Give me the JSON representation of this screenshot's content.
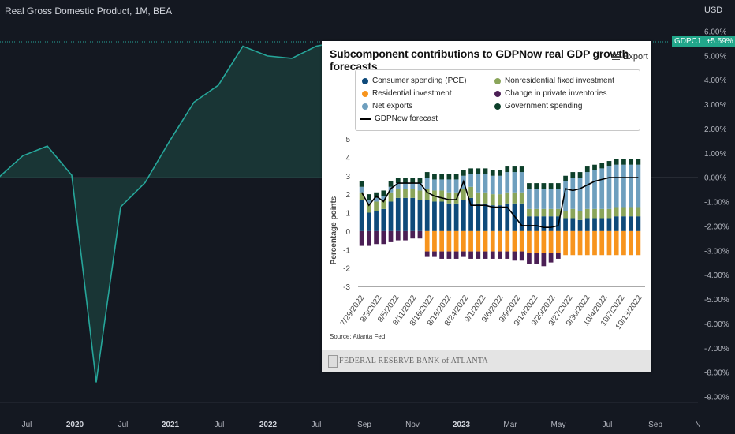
{
  "main_chart": {
    "title": "Real Gross Domestic Product, 1M, BEA",
    "currency": "USD",
    "symbol": "GDPC1",
    "last_value_label": "+5.59%",
    "line_color": "#26a69a",
    "y_ticks": [
      "6.00%",
      "5.00%",
      "4.00%",
      "3.00%",
      "2.00%",
      "1.00%",
      "0.00%",
      "-1.00%",
      "-2.00%",
      "-3.00%",
      "-4.00%",
      "-5.00%",
      "-6.00%",
      "-7.00%",
      "-8.00%",
      "-9.00%"
    ],
    "x_ticks": [
      {
        "label": "Jul",
        "bold": false
      },
      {
        "label": "2020",
        "bold": true
      },
      {
        "label": "Jul",
        "bold": false
      },
      {
        "label": "2021",
        "bold": true
      },
      {
        "label": "Jul",
        "bold": false
      },
      {
        "label": "2022",
        "bold": true
      },
      {
        "label": "Jul",
        "bold": false
      },
      {
        "label": "Sep",
        "bold": false
      },
      {
        "label": "Nov",
        "bold": false
      },
      {
        "label": "2023",
        "bold": true
      },
      {
        "label": "Mar",
        "bold": false
      },
      {
        "label": "May",
        "bold": false
      },
      {
        "label": "Jul",
        "bold": false
      },
      {
        "label": "Sep",
        "bold": false
      },
      {
        "label": "N",
        "bold": false
      }
    ],
    "chart_data": {
      "type": "area",
      "x": [
        "2019 Q1",
        "2019 Q2",
        "2019 Q3",
        "2019 Q4",
        "2020 Q1",
        "2020 Q2",
        "2020 Q3",
        "2020 Q4",
        "2021 Q1",
        "2021 Q2",
        "2021 Q3",
        "2021 Q4",
        "2022 Q1",
        "2022 Q2",
        "2022 Q3"
      ],
      "values": [
        0.0,
        0.9,
        1.3,
        0.1,
        -8.4,
        -1.2,
        -0.2,
        1.5,
        3.1,
        3.8,
        5.4,
        5.0,
        4.9,
        5.4,
        5.59
      ],
      "ylim": [
        -9.3,
        6.3
      ]
    }
  },
  "overlay": {
    "title": "Subcomponent contributions to GDPNow real GDP growth forecasts",
    "export_label": "Export",
    "y_axis_label": "Percentage points",
    "source": "Source: Atlanta Fed",
    "footer": "FEDERAL RESERVE BANK of ATLANTA",
    "legend": [
      {
        "label": "Consumer spending (PCE)",
        "color": "#0e4a7a"
      },
      {
        "label": "Nonresidential fixed investment",
        "color": "#8aa55a"
      },
      {
        "label": "Residential investment",
        "color": "#f7941d"
      },
      {
        "label": "Change in private inventories",
        "color": "#4b1f55"
      },
      {
        "label": "Net exports",
        "color": "#6e9fbe"
      },
      {
        "label": "Government spending",
        "color": "#0d3f2a"
      },
      {
        "label": "GDPNow forecast",
        "color": "#000000"
      }
    ],
    "y_ticks": [
      "5",
      "4",
      "3",
      "2",
      "1",
      "0",
      "-1",
      "-2",
      "-3"
    ],
    "x_ticks": [
      "7/29/2022",
      "8/3/2022",
      "8/5/2022",
      "8/11/2022",
      "8/16/2022",
      "8/18/2022",
      "8/24/2022",
      "9/1/2022",
      "9/6/2022",
      "9/9/2022",
      "9/14/2022",
      "9/20/2022",
      "9/27/2022",
      "9/30/2022",
      "10/4/2022",
      "10/7/2022",
      "10/13/2022"
    ],
    "chart_data": {
      "type": "bar",
      "stacked": true,
      "ylim": [
        -3,
        5
      ],
      "series": [
        {
          "name": "Consumer spending (PCE)",
          "values": [
            1.7,
            1.0,
            1.1,
            1.2,
            1.6,
            1.8,
            1.8,
            1.8,
            1.7,
            1.7,
            1.6,
            1.6,
            1.5,
            1.5,
            1.7,
            1.8,
            1.5,
            1.5,
            1.4,
            1.4,
            1.5,
            1.5,
            1.5,
            0.8,
            0.8,
            0.8,
            0.8,
            0.8,
            0.7,
            0.7,
            0.6,
            0.7,
            0.7,
            0.7,
            0.7,
            0.8,
            0.8,
            0.8,
            0.8
          ]
        },
        {
          "name": "Nonresidential fixed investment",
          "values": [
            0.4,
            0.5,
            0.5,
            0.5,
            0.5,
            0.5,
            0.5,
            0.5,
            0.5,
            0.6,
            0.6,
            0.6,
            0.6,
            0.6,
            0.6,
            0.6,
            0.6,
            0.6,
            0.6,
            0.6,
            0.6,
            0.6,
            0.6,
            0.4,
            0.4,
            0.4,
            0.4,
            0.4,
            0.4,
            0.5,
            0.5,
            0.5,
            0.5,
            0.5,
            0.5,
            0.5,
            0.5,
            0.5,
            0.5
          ]
        },
        {
          "name": "Residential investment",
          "values": [
            0,
            0,
            0,
            0,
            0,
            0,
            0,
            0,
            0,
            -1.1,
            -1.1,
            -1.1,
            -1.1,
            -1.1,
            -1.1,
            -1.1,
            -1.1,
            -1.1,
            -1.1,
            -1.1,
            -1.1,
            -1.1,
            -1.1,
            -1.2,
            -1.2,
            -1.2,
            -1.2,
            -1.2,
            -1.3,
            -1.3,
            -1.3,
            -1.3,
            -1.3,
            -1.3,
            -1.3,
            -1.3,
            -1.3,
            -1.3,
            -1.3
          ]
        },
        {
          "name": "Change in private inventories",
          "values": [
            -0.8,
            -0.8,
            -0.7,
            -0.7,
            -0.6,
            -0.5,
            -0.5,
            -0.4,
            -0.4,
            -0.3,
            -0.3,
            -0.4,
            -0.4,
            -0.4,
            -0.3,
            -0.4,
            -0.4,
            -0.4,
            -0.4,
            -0.4,
            -0.4,
            -0.5,
            -0.5,
            -0.6,
            -0.6,
            -0.7,
            -0.5,
            -0.3,
            0,
            0,
            0,
            0,
            0,
            0,
            0,
            0,
            0,
            0,
            0
          ]
        },
        {
          "name": "Net exports",
          "values": [
            0.3,
            0.2,
            0.2,
            0.2,
            0.3,
            0.3,
            0.3,
            0.3,
            0.4,
            0.6,
            0.6,
            0.6,
            0.7,
            0.7,
            0.7,
            0.7,
            1.0,
            1.0,
            1.0,
            1.0,
            1.1,
            1.1,
            1.1,
            1.1,
            1.1,
            1.1,
            1.1,
            1.1,
            1.6,
            1.7,
            1.8,
            2.0,
            2.1,
            2.2,
            2.3,
            2.3,
            2.3,
            2.3,
            2.3
          ]
        },
        {
          "name": "Government spending",
          "values": [
            0.3,
            0.3,
            0.3,
            0.3,
            0.3,
            0.3,
            0.3,
            0.3,
            0.3,
            0.3,
            0.3,
            0.3,
            0.3,
            0.3,
            0.3,
            0.3,
            0.3,
            0.3,
            0.3,
            0.3,
            0.3,
            0.3,
            0.3,
            0.3,
            0.3,
            0.3,
            0.3,
            0.3,
            0.3,
            0.3,
            0.3,
            0.3,
            0.3,
            0.3,
            0.3,
            0.3,
            0.3,
            0.3,
            0.3
          ]
        }
      ],
      "gdpnow": [
        2.1,
        1.4,
        1.9,
        1.6,
        2.3,
        2.6,
        2.6,
        2.6,
        2.6,
        2.1,
        1.9,
        1.8,
        1.7,
        1.7,
        2.7,
        1.4,
        1.4,
        1.4,
        1.3,
        1.3,
        1.3,
        0.8,
        0.3,
        0.3,
        0.3,
        0.2,
        0.2,
        0.3,
        2.3,
        2.2,
        2.3,
        2.5,
        2.7,
        2.8,
        2.9,
        2.9,
        2.9,
        2.9,
        2.9
      ]
    }
  }
}
